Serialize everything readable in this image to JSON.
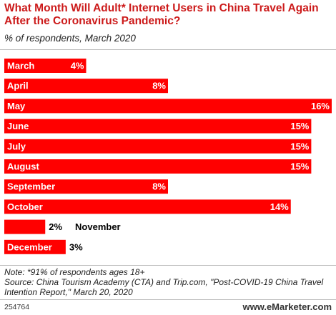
{
  "header": {
    "title": "What Month Will Adult* Internet Users in China Travel Again After the Coronavirus Pandemic?",
    "subtitle": "% of respondents, March 2020"
  },
  "colors": {
    "bar": "#ff0000",
    "title": "#cc1a1a",
    "label_inside": "#ffffff",
    "label_outside": "#000000"
  },
  "chart_data": {
    "type": "bar",
    "orientation": "horizontal",
    "title": "What Month Will Adult* Internet Users in China Travel Again After the Coronavirus Pandemic?",
    "subtitle": "% of respondents, March 2020",
    "categories": [
      "March",
      "April",
      "May",
      "June",
      "July",
      "August",
      "September",
      "October",
      "November",
      "December"
    ],
    "values": [
      4,
      8,
      16,
      15,
      15,
      15,
      8,
      14,
      2,
      3
    ],
    "value_labels": [
      "4%",
      "8%",
      "16%",
      "15%",
      "15%",
      "15%",
      "8%",
      "14%",
      "2%",
      "3%"
    ],
    "xlim": [
      0,
      16
    ],
    "grid": false,
    "legend": "none"
  },
  "footer": {
    "note_line1": "Note: *91% of respondents ages 18+",
    "note_line2": "Source: China Tourism Academy (CTA) and Trip.com, \"Post-COVID-19 China Travel Intention Report,\" March 20, 2020",
    "chart_id": "254764",
    "brand": "www.eMarketer.com"
  }
}
